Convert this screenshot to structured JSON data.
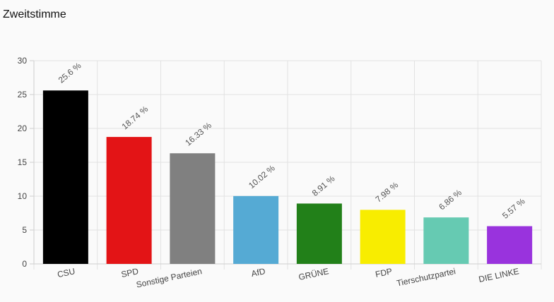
{
  "page": {
    "title": "Zweitstimme"
  },
  "chart_data": {
    "type": "bar",
    "title": "Zweitstimme",
    "xlabel": "",
    "ylabel": "",
    "ylim": [
      0,
      30
    ],
    "yticks": [
      0,
      5,
      10,
      15,
      20,
      25,
      30
    ],
    "grid": true,
    "legend": "none",
    "categories": [
      "CSU",
      "SPD",
      "Sonstige Parteien",
      "AfD",
      "GRÜNE",
      "FDP",
      "Tierschutzpartei",
      "DIE LINKE"
    ],
    "values": [
      25.6,
      18.74,
      16.33,
      10.02,
      8.91,
      7.98,
      6.86,
      5.57
    ],
    "value_labels": [
      "25.6 %",
      "18.74 %",
      "16.33 %",
      "10.02 %",
      "8.91 %",
      "7.98 %",
      "6.86 %",
      "5.57 %"
    ],
    "colors": [
      "#000000",
      "#e31416",
      "#808080",
      "#55aad4",
      "#228019",
      "#f8ed00",
      "#66cab2",
      "#9933dd"
    ]
  }
}
